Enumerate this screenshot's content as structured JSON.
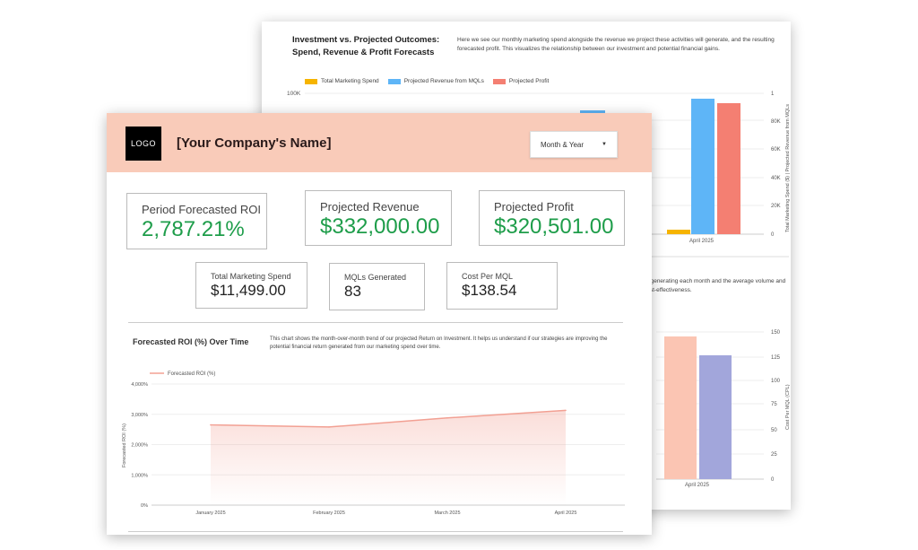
{
  "back_sheet": {
    "title": "Investment vs. Projected Outcomes: Spend, Revenue & Profit Forecasts",
    "description": "Here we see our monthly marketing spend alongside the revenue we project these activities will generate, and the resulting forecasted profit. This visualizes the relationship between our investment and potential financial gains.",
    "legend": [
      "Total Marketing Spend",
      "Projected Revenue from MQLs",
      "Projected Profit"
    ],
    "y_left_ticks": [
      "100K"
    ],
    "y_right_ticks": [
      "0",
      "20K",
      "40K",
      "60K",
      "80K"
    ],
    "y_right_label": "Total Marketing Spend ($) | Projected Revenue from MQLs",
    "y_right_top_tick": "1",
    "x_label": "April 2025",
    "text2": "re generating each month and the average volume and cost-effectiveness.",
    "y2_right_ticks": [
      "0",
      "25",
      "50",
      "75",
      "100",
      "125",
      "150"
    ],
    "y2_right_label": "Cost Per MQL (CPL)",
    "x2_label": "April 2025",
    "colors": {
      "spend": "#f6b400",
      "revenue": "#5eb5f7",
      "profit": "#f47f72",
      "mqls": "#fbc5b3",
      "cpl": "#a2a6db"
    }
  },
  "header": {
    "logo": "LOGO",
    "company": "[Your Company's Name]",
    "dropdown": "Month & Year",
    "bg": "#f9cbb9"
  },
  "kpis": {
    "roi": {
      "label": "Period Forecasted ROI",
      "value": "2,787.21%"
    },
    "revenue": {
      "label": "Projected Revenue",
      "value": "$332,000.00"
    },
    "profit": {
      "label": "Projected Profit",
      "value": "$320,501.00"
    },
    "spend": {
      "label": "Total Marketing Spend",
      "value": "$11,499.00"
    },
    "mqls": {
      "label": "MQLs Generated",
      "value": "83"
    },
    "cpm": {
      "label": "Cost Per MQL",
      "value": "$138.54"
    }
  },
  "roi_chart": {
    "title": "Forecasted ROI (%) Over Time",
    "description": "This chart shows the month-over-month trend of our projected Return on Investment. It helps us understand if our strategies are improving the potential financial return generated from our marketing spend over time."
  },
  "chart_data": {
    "type": "line",
    "x": [
      "January 2025",
      "February 2025",
      "March 2025",
      "April 2025"
    ],
    "series": [
      {
        "name": "Forecasted ROI (%)",
        "values": [
          2650,
          2580,
          2880,
          3130
        ]
      }
    ],
    "ylabel": "Forecasted ROI (%)",
    "y_ticks": [
      "0%",
      "1,000%",
      "2,000%",
      "3,000%",
      "4,000%"
    ],
    "ylim": [
      0,
      4000
    ],
    "color": "#f2a093"
  }
}
